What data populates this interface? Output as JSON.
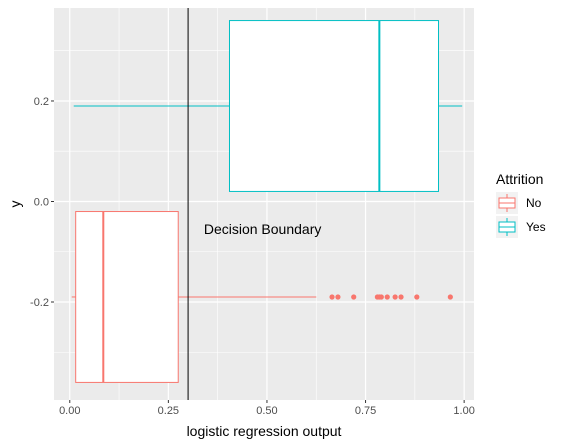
{
  "chart_data": {
    "type": "boxplot",
    "xlabel": "logistic regression output",
    "ylabel": "y",
    "xlim": [
      -0.04,
      1.025
    ],
    "ylim": [
      -0.395,
      0.385
    ],
    "x_ticks": [
      0.0,
      0.25,
      0.5,
      0.75,
      1.0
    ],
    "x_tick_labels": [
      "0.00",
      "0.25",
      "0.50",
      "0.75",
      "1.00"
    ],
    "y_ticks": [
      -0.2,
      0.0,
      0.2
    ],
    "y_tick_labels": [
      "-0.2",
      "0.0",
      "0.2"
    ],
    "grid": true,
    "orientation": "horizontal",
    "legend": {
      "title": "Attrition",
      "position": "right",
      "entries": [
        "No",
        "Yes"
      ]
    },
    "series": [
      {
        "name": "No",
        "color": "#F8766D",
        "y": -0.19,
        "box_height": 0.34,
        "whisker_low": 0.005,
        "q1": 0.015,
        "median": 0.085,
        "q3": 0.275,
        "whisker_high": 0.625,
        "outliers": [
          0.665,
          0.68,
          0.72,
          0.78,
          0.785,
          0.79,
          0.805,
          0.825,
          0.84,
          0.88,
          0.965
        ]
      },
      {
        "name": "Yes",
        "color": "#00BFC4",
        "y": 0.19,
        "box_height": 0.34,
        "whisker_low": 0.01,
        "q1": 0.405,
        "median": 0.785,
        "q3": 0.935,
        "whisker_high": 0.995,
        "outliers": []
      }
    ],
    "vline": {
      "x": 0.3,
      "color": "#000000"
    },
    "annotation": {
      "text": "Decision Boundary",
      "x": 0.34,
      "y": -0.055
    }
  }
}
